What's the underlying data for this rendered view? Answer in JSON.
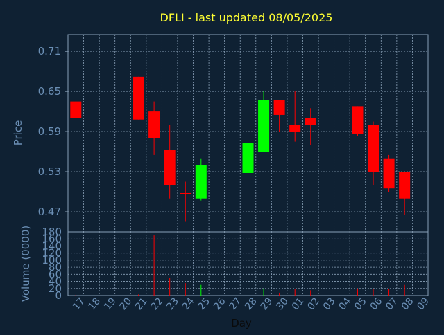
{
  "colors": {
    "background": "#0f2133",
    "title": "#ffff33",
    "axis_text": "#6b8fb5",
    "frame": "#8aa1b8",
    "grid": "#8aa1b8",
    "up": "#00ff00",
    "down": "#ff0000"
  },
  "chart_data": {
    "type": "candlestick",
    "title": "DFLI - last updated 08/05/2025",
    "xlabel": "Day",
    "ylabel_price": "Price",
    "ylabel_volume": "Volume (0000)",
    "price_ylim": [
      0.44,
      0.735
    ],
    "volume_ylim": [
      0,
      180
    ],
    "price_ticks": [
      "0.71",
      "0.65",
      "0.59",
      "0.53",
      "0.47"
    ],
    "volume_ticks": [
      "180",
      "160",
      "140",
      "120",
      "100",
      "80",
      "60",
      "40",
      "20",
      "0"
    ],
    "grid": true,
    "x_ticks": [
      "17",
      "18",
      "19",
      "20",
      "21",
      "22",
      "23",
      "24",
      "25",
      "26",
      "27",
      "28",
      "29",
      "30",
      "01",
      "02",
      "03",
      "04",
      "05",
      "06",
      "07",
      "08",
      "09"
    ],
    "candles": [
      {
        "day": "17",
        "open": 0.635,
        "high": 0.635,
        "low": 0.61,
        "close": 0.61,
        "volume": 2
      },
      {
        "day": "21",
        "open": 0.672,
        "high": 0.672,
        "low": 0.608,
        "close": 0.608,
        "volume": 3
      },
      {
        "day": "22",
        "open": 0.62,
        "high": 0.635,
        "low": 0.555,
        "close": 0.58,
        "volume": 170
      },
      {
        "day": "23",
        "open": 0.563,
        "high": 0.6,
        "low": 0.49,
        "close": 0.51,
        "volume": 50
      },
      {
        "day": "24",
        "open": 0.498,
        "high": 0.515,
        "low": 0.455,
        "close": 0.497,
        "volume": 35
      },
      {
        "day": "25",
        "open": 0.49,
        "high": 0.55,
        "low": 0.487,
        "close": 0.54,
        "volume": 30
      },
      {
        "day": "28",
        "open": 0.528,
        "high": 0.665,
        "low": 0.527,
        "close": 0.573,
        "volume": 30
      },
      {
        "day": "29",
        "open": 0.56,
        "high": 0.65,
        "low": 0.56,
        "close": 0.637,
        "volume": 20
      },
      {
        "day": "30",
        "open": 0.637,
        "high": 0.637,
        "low": 0.59,
        "close": 0.615,
        "volume": 8
      },
      {
        "day": "01",
        "open": 0.6,
        "high": 0.65,
        "low": 0.575,
        "close": 0.59,
        "volume": 18
      },
      {
        "day": "02",
        "open": 0.61,
        "high": 0.625,
        "low": 0.57,
        "close": 0.6,
        "volume": 15
      },
      {
        "day": "05",
        "open": 0.628,
        "high": 0.628,
        "low": 0.583,
        "close": 0.587,
        "volume": 20
      },
      {
        "day": "06",
        "open": 0.6,
        "high": 0.605,
        "low": 0.51,
        "close": 0.53,
        "volume": 18
      },
      {
        "day": "07",
        "open": 0.55,
        "high": 0.555,
        "low": 0.5,
        "close": 0.505,
        "volume": 18
      },
      {
        "day": "08",
        "open": 0.53,
        "high": 0.53,
        "low": 0.465,
        "close": 0.49,
        "volume": 30
      }
    ]
  }
}
